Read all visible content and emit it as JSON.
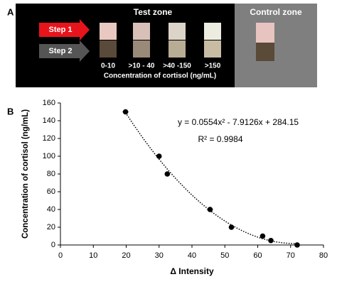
{
  "panel_a": {
    "label": "A",
    "test_zone": "Test zone",
    "control_zone": "Control zone",
    "steps": [
      "Step 1",
      "Step 2"
    ],
    "ranges": [
      "0-10",
      ">10 - 40",
      ">40 -150",
      ">150"
    ],
    "caption": "Concentration of cortisol (ng/mL)"
  },
  "chart_data": {
    "type": "scatter",
    "panel_label": "B",
    "x_label": "Δ Intensity",
    "y_label": "Concentration of cortisol (ng/mL)",
    "x": [
      19.8,
      30,
      32.5,
      45.5,
      52,
      61.5,
      64,
      72
    ],
    "x_errors": [
      1,
      0.6,
      0.8,
      1,
      0.8,
      0.8,
      0.8,
      0.6
    ],
    "values": [
      150,
      100,
      80,
      40,
      20,
      10,
      5,
      0
    ],
    "color": "#000000",
    "xlim": [
      0,
      80
    ],
    "xticks": [
      0,
      10,
      20,
      30,
      40,
      50,
      60,
      70,
      80
    ],
    "ylim": [
      0,
      160
    ],
    "yticks": [
      0,
      20,
      40,
      60,
      80,
      100,
      120,
      140,
      160
    ],
    "grid": false,
    "trendline": {
      "coefficients": [
        0.0554,
        -7.9126,
        284.15
      ],
      "equation": "y = 0.0554x² - 7.9126x + 284.15",
      "r2": "R² = 0.9984"
    }
  }
}
